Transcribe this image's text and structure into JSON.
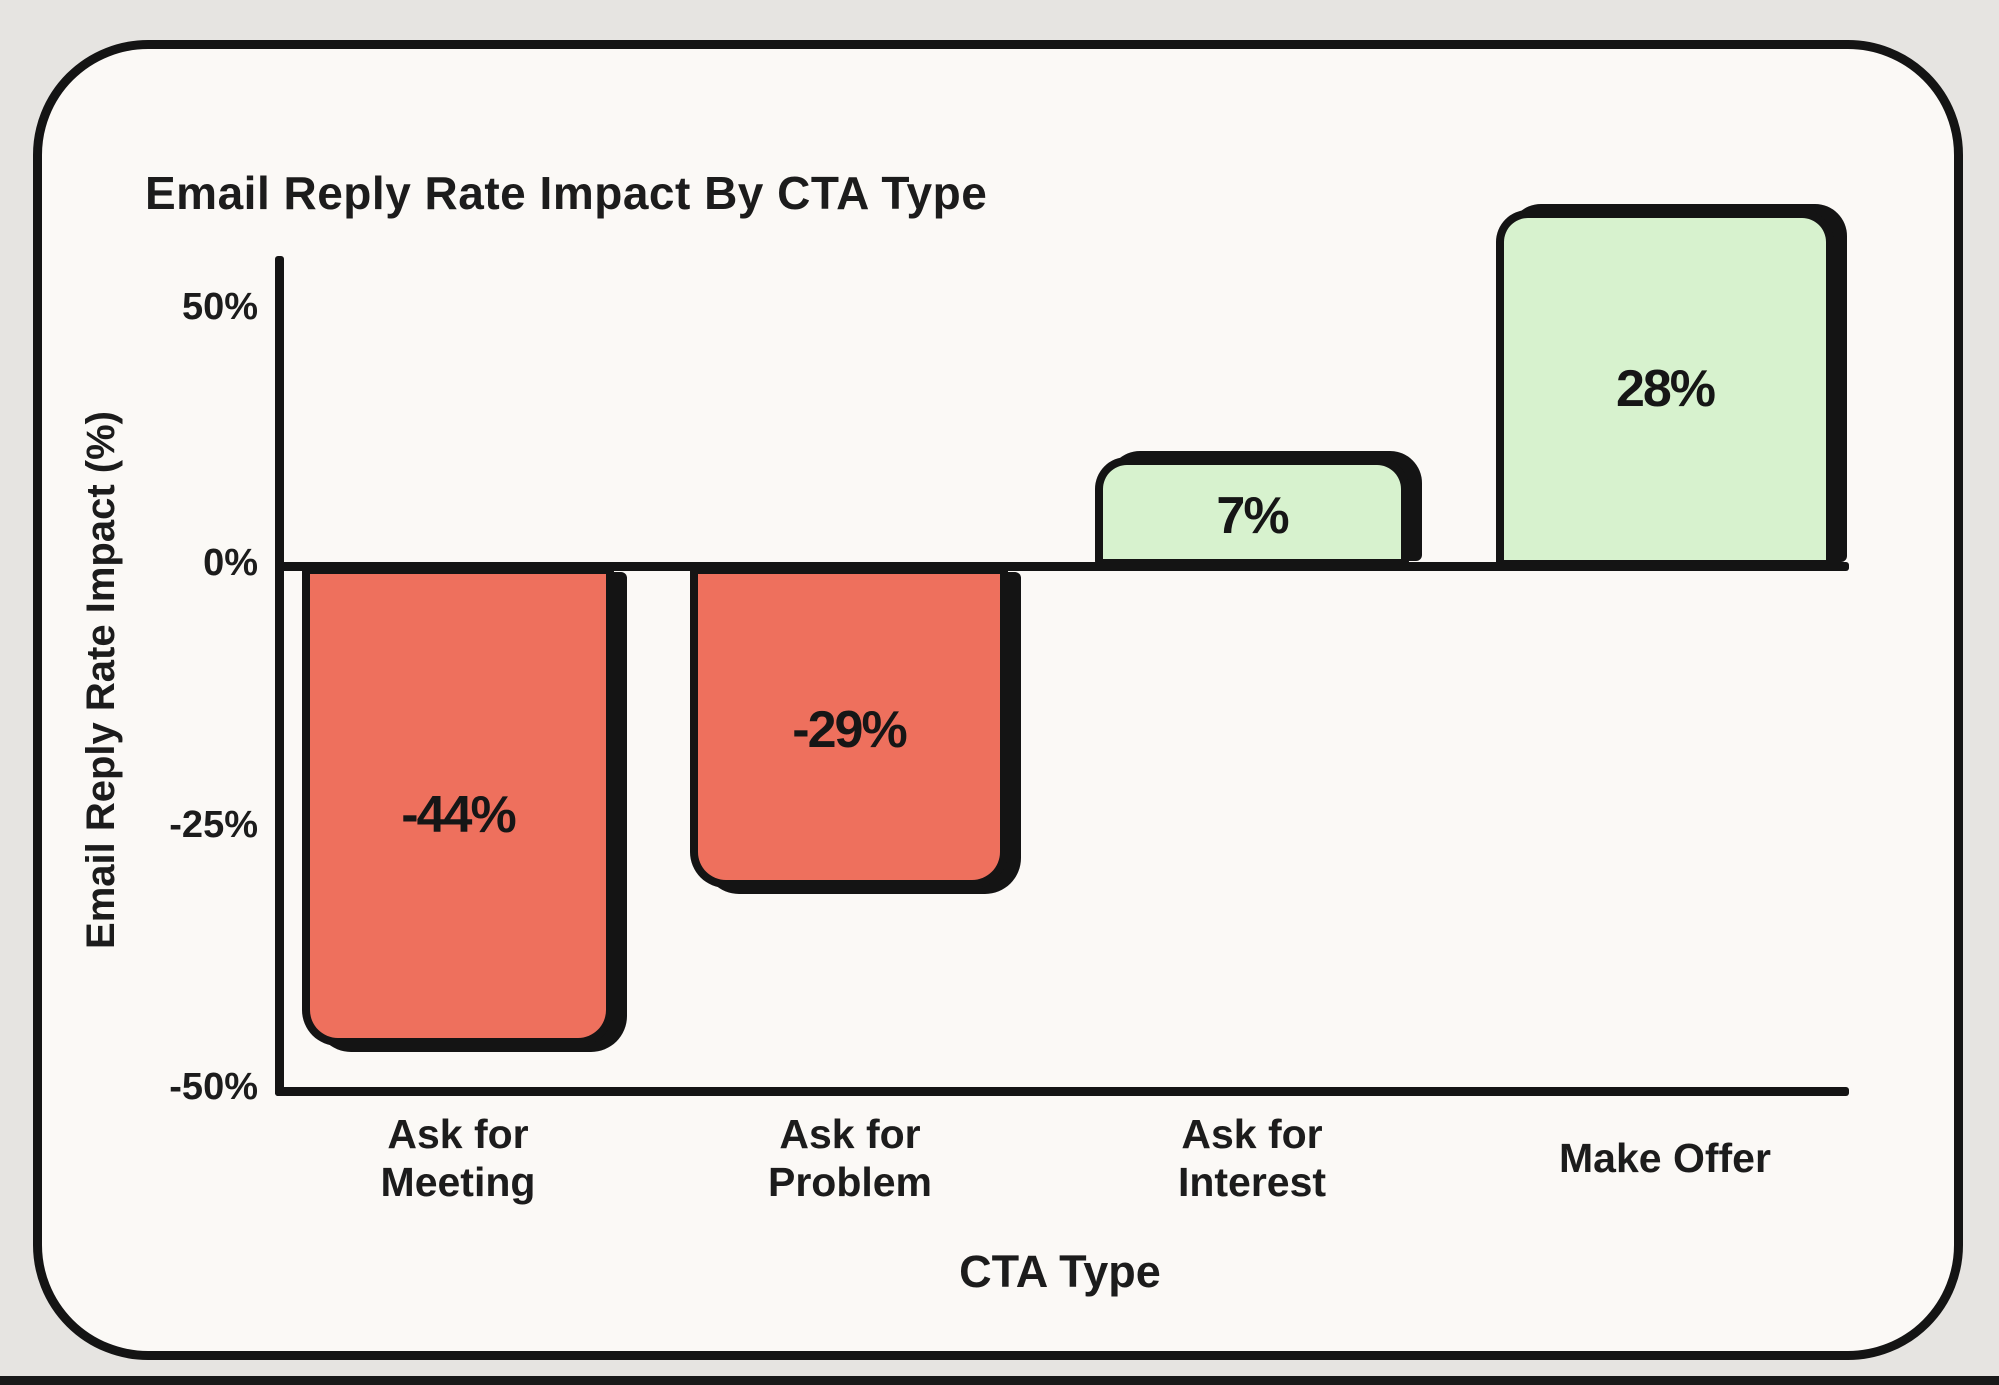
{
  "colors": {
    "page_background": "#e6e4e1",
    "card_background": "#fbf9f6",
    "outline_black": "#141414",
    "negative_bar": "#ee705d",
    "positive_bar": "#d7f2ce",
    "bottom_edge": "#191919"
  },
  "chart_data": {
    "type": "bar",
    "title": "Email Reply Rate Impact By CTA Type",
    "xlabel": "CTA Type",
    "ylabel": "Email Reply Rate Impact (%)",
    "categories": [
      "Ask for Meeting",
      "Ask for Problem",
      "Ask for Interest",
      "Make Offer"
    ],
    "categories_lines": [
      [
        "Ask for",
        "Meeting"
      ],
      [
        "Ask for",
        "Problem"
      ],
      [
        "Ask for",
        "Interest"
      ],
      [
        "Make Offer",
        ""
      ]
    ],
    "values": [
      -44,
      -29,
      7,
      28
    ],
    "value_labels": [
      "-44%",
      "-29%",
      "7%",
      "28%"
    ],
    "series_colors": [
      "#ee705d",
      "#ee705d",
      "#d7f2ce",
      "#d7f2ce"
    ],
    "y_ticks": [
      "50%",
      "0%",
      "-25%",
      "-50%"
    ],
    "ylim": [
      -50,
      50
    ],
    "grid": false,
    "legend": null,
    "style": "hand-drawn card, thick black outlines, rounded bar corners, offset black drop shadows"
  }
}
